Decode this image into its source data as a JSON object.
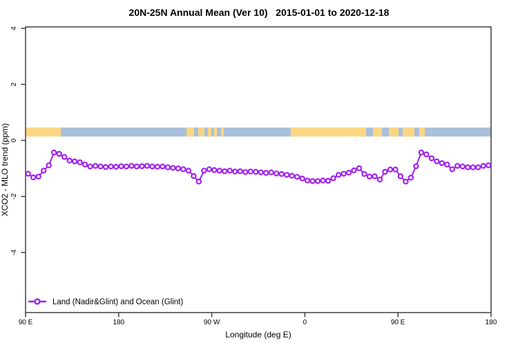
{
  "title": "20N-25N Annual Mean (Ver 10)   2015-01-01 to 2020-12-18",
  "colors": {
    "series_purple": "#A020F0",
    "ocean_blue": "#A9C0DC",
    "land_orange": "#FBD683",
    "axis_line": "#3F3F3F",
    "text": "#000000"
  },
  "chart_data": {
    "type": "line",
    "title": "20N-25N Annual Mean (Ver 10)   2015-01-01 to 2020-12-18",
    "xlabel": "Longitude (deg E)",
    "ylabel": "XCO2 - MLO trend (ppm)",
    "grid": false,
    "xlim_deg_along_axis": [
      90,
      540
    ],
    "ylim": [
      -6.1,
      4.05
    ],
    "x_ticks": [
      {
        "axis_deg": 90,
        "label": "90 E"
      },
      {
        "axis_deg": 180,
        "label": "180"
      },
      {
        "axis_deg": 270,
        "label": "90 W"
      },
      {
        "axis_deg": 360,
        "label": "0"
      },
      {
        "axis_deg": 450,
        "label": "90 E"
      },
      {
        "axis_deg": 540,
        "label": "180"
      }
    ],
    "y_ticks": [
      {
        "value": 4,
        "label": "4"
      },
      {
        "value": 2,
        "label": "2"
      },
      {
        "value": 0,
        "label": "0"
      },
      {
        "value": -2,
        "label": "-2"
      },
      {
        "value": -4,
        "label": "-4"
      }
    ],
    "legend": {
      "position": "bottom-left",
      "entries": [
        {
          "label": "Land (Nadir&Glint) and Ocean (Glint)",
          "color": "#A020F0",
          "marker": "open-circle"
        }
      ]
    },
    "series": [
      {
        "name": "Land (Nadir&Glint) and Ocean (Glint)",
        "color": "#A020F0",
        "marker": "open-circle",
        "x_start_axis_deg": 92.5,
        "x_step_deg": 5,
        "values": [
          -1.19,
          -1.32,
          -1.29,
          -1.08,
          -0.89,
          -0.43,
          -0.48,
          -0.59,
          -0.72,
          -0.75,
          -0.78,
          -0.86,
          -0.93,
          -0.91,
          -0.93,
          -0.95,
          -0.93,
          -0.94,
          -0.92,
          -0.93,
          -0.91,
          -0.93,
          -0.92,
          -0.91,
          -0.93,
          -0.94,
          -0.93,
          -0.96,
          -0.98,
          -1.0,
          -1.03,
          -1.08,
          -1.27,
          -1.47,
          -1.08,
          -1.03,
          -1.06,
          -1.08,
          -1.1,
          -1.08,
          -1.11,
          -1.1,
          -1.13,
          -1.11,
          -1.12,
          -1.14,
          -1.16,
          -1.14,
          -1.18,
          -1.2,
          -1.23,
          -1.26,
          -1.3,
          -1.36,
          -1.43,
          -1.45,
          -1.45,
          -1.43,
          -1.44,
          -1.35,
          -1.23,
          -1.19,
          -1.15,
          -1.07,
          -0.99,
          -1.2,
          -1.29,
          -1.28,
          -1.4,
          -1.12,
          -1.04,
          -1.04,
          -1.28,
          -1.47,
          -1.33,
          -0.92,
          -0.43,
          -0.5,
          -0.64,
          -0.75,
          -0.81,
          -0.86,
          -1.03,
          -0.91,
          -0.93,
          -0.96,
          -0.96,
          -0.96,
          -0.91,
          -0.89
        ]
      }
    ],
    "map_band": {
      "description": "world-map latitude strip 20N-25N drawn across plot near y=0.3 ppm",
      "y_range_ppm": [
        0.14,
        0.46
      ],
      "ocean_color": "#A9C0DC",
      "land_color": "#FBD683",
      "segments": [
        {
          "type": "land",
          "x0": 0.0,
          "x1": 0.0757
        },
        {
          "type": "ocean",
          "x0": 0.0757,
          "x1": 0.3457
        },
        {
          "type": "land",
          "x0": 0.3457,
          "x1": 0.362
        },
        {
          "type": "ocean",
          "x0": 0.362,
          "x1": 0.3709
        },
        {
          "type": "land",
          "x0": 0.3709,
          "x1": 0.3843
        },
        {
          "type": "ocean",
          "x0": 0.3843,
          "x1": 0.3917
        },
        {
          "type": "land",
          "x0": 0.3917,
          "x1": 0.3991
        },
        {
          "type": "ocean",
          "x0": 0.3991,
          "x1": 0.405
        },
        {
          "type": "land",
          "x0": 0.405,
          "x1": 0.411
        },
        {
          "type": "ocean",
          "x0": 0.411,
          "x1": 0.4199
        },
        {
          "type": "land",
          "x0": 0.4199,
          "x1": 0.4258
        },
        {
          "type": "ocean",
          "x0": 0.4258,
          "x1": 0.5697
        },
        {
          "type": "land",
          "x0": 0.5697,
          "x1": 0.7315
        },
        {
          "type": "ocean",
          "x0": 0.7315,
          "x1": 0.7463
        },
        {
          "type": "land",
          "x0": 0.7463,
          "x1": 0.7656
        },
        {
          "type": "ocean",
          "x0": 0.7656,
          "x1": 0.7804
        },
        {
          "type": "land",
          "x0": 0.7804,
          "x1": 0.8012
        },
        {
          "type": "ocean",
          "x0": 0.8012,
          "x1": 0.8101
        },
        {
          "type": "land",
          "x0": 0.8101,
          "x1": 0.8353
        },
        {
          "type": "ocean",
          "x0": 0.8353,
          "x1": 0.8457
        },
        {
          "type": "land",
          "x0": 0.8457,
          "x1": 0.8576
        },
        {
          "type": "ocean",
          "x0": 0.8576,
          "x1": 1.0
        }
      ]
    }
  }
}
